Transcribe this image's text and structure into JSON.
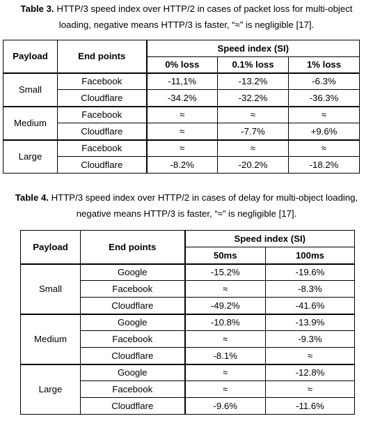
{
  "table3": {
    "label": "Table 3.",
    "caption_line1": "HTTP/3 speed index over HTTP/2 in cases of packet loss for multi-object",
    "caption_line2": "loading, negative means HTTP/3 is faster, “≈” is negligible [17].",
    "headers": {
      "payload": "Payload",
      "endpoints": "End points",
      "group": "Speed index (SI)",
      "cols": [
        "0% loss",
        "0.1% loss",
        "1% loss"
      ]
    },
    "groups": [
      {
        "payload": "Small",
        "rows": [
          {
            "endpoint": "Facebook",
            "values": [
              "-11,1%",
              "-13.2%",
              "-6.3%"
            ]
          },
          {
            "endpoint": "Cloudflare",
            "values": [
              "-34.2%",
              "-32.2%",
              "-36.3%"
            ]
          }
        ]
      },
      {
        "payload": "Medium",
        "rows": [
          {
            "endpoint": "Facebook",
            "values": [
              "≈",
              "≈",
              "≈"
            ]
          },
          {
            "endpoint": "Cloudflare",
            "values": [
              "≈",
              "-7.7%",
              "+9.6%"
            ]
          }
        ]
      },
      {
        "payload": "Large",
        "rows": [
          {
            "endpoint": "Facebook",
            "values": [
              "≈",
              "≈",
              "≈"
            ]
          },
          {
            "endpoint": "Cloudflare",
            "values": [
              "-8.2%",
              "-20.2%",
              "-18.2%"
            ]
          }
        ]
      }
    ]
  },
  "table4": {
    "label": "Table 4.",
    "caption_line1": "HTTP/3 speed index over HTTP/2 in cases of delay for multi-object loading,",
    "caption_line2": "negative means HTTP/3 is faster, “≈” is negligible [17].",
    "headers": {
      "payload": "Payload",
      "endpoints": "End points",
      "group": "Speed index (SI)",
      "cols": [
        "50ms",
        "100ms"
      ]
    },
    "groups": [
      {
        "payload": "Small",
        "rows": [
          {
            "endpoint": "Google",
            "values": [
              "-15.2%",
              "-19.6%"
            ]
          },
          {
            "endpoint": "Facebook",
            "values": [
              "≈",
              "-8.3%"
            ]
          },
          {
            "endpoint": "Cloudflare",
            "values": [
              "-49.2%",
              "-41.6%"
            ]
          }
        ]
      },
      {
        "payload": "Medium",
        "rows": [
          {
            "endpoint": "Google",
            "values": [
              "-10.8%",
              "-13.9%"
            ]
          },
          {
            "endpoint": "Facebook",
            "values": [
              "≈",
              "-9.3%"
            ]
          },
          {
            "endpoint": "Cloudflare",
            "values": [
              "-8.1%",
              "≈"
            ]
          }
        ]
      },
      {
        "payload": "Large",
        "rows": [
          {
            "endpoint": "Google",
            "values": [
              "≈",
              "-12.8%"
            ]
          },
          {
            "endpoint": "Facebook",
            "values": [
              "≈",
              "≈"
            ]
          },
          {
            "endpoint": "Cloudflare",
            "values": [
              "-9.6%",
              "-11.6%"
            ]
          }
        ]
      }
    ]
  }
}
